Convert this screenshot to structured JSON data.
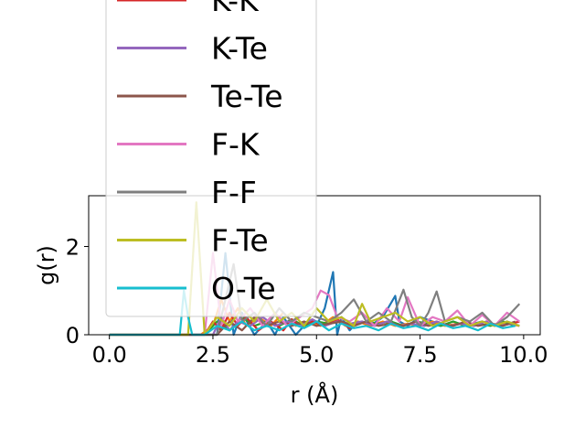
{
  "chart_data": {
    "type": "line",
    "title": "",
    "xlabel": "r (Å)",
    "ylabel": "g(r)",
    "xlim": [
      -0.5,
      10.4
    ],
    "ylim": [
      0,
      3.15
    ],
    "xticks": [
      0.0,
      2.5,
      5.0,
      7.5,
      10.0
    ],
    "xtick_labels": [
      "0.0",
      "2.5",
      "5.0",
      "7.5",
      "10.0"
    ],
    "yticks": [
      0,
      2
    ],
    "ytick_labels": [
      "0",
      "2"
    ],
    "grid": false,
    "legend_position": "upper-left, overflowing above the plot",
    "legend": [
      "K-K",
      "K-Te",
      "Te-Te",
      "F-K",
      "F-F",
      "F-Te",
      "O-Te"
    ],
    "series": [
      {
        "name": "",
        "color": "#1f77b4",
        "x": [
          0.0,
          1.8,
          2.0,
          2.4,
          2.6,
          2.8,
          3.0,
          3.2,
          3.5,
          3.8,
          4.0,
          4.2,
          4.5,
          4.8,
          5.0,
          5.2,
          5.4,
          5.5,
          5.6,
          5.8,
          6.0,
          6.3,
          6.6,
          6.9,
          7.0,
          7.2,
          7.5,
          7.8,
          8.0,
          8.3,
          8.6,
          9.0,
          9.3,
          9.6,
          9.9
        ],
        "y": [
          0,
          0,
          0,
          0,
          0,
          1.85,
          0,
          0.5,
          0,
          0.3,
          0,
          0.4,
          0,
          0.3,
          0.2,
          0.6,
          1.42,
          0,
          0.4,
          0.1,
          0.3,
          0.2,
          0.4,
          0.88,
          0.3,
          0.2,
          0.4,
          0.3,
          0.2,
          0.3,
          0.2,
          0.3,
          0.2,
          0.3,
          0.2
        ]
      },
      {
        "name": "",
        "color": "#ff7f0e",
        "x": [
          0.0,
          1.9,
          2.2,
          2.5,
          2.7,
          2.9,
          3.1,
          3.3,
          3.6,
          3.9,
          4.2,
          4.5,
          4.8,
          5.1,
          5.4,
          5.7,
          6.0,
          6.3,
          6.6,
          6.9,
          7.2,
          7.5,
          7.8,
          8.1,
          8.4,
          8.7,
          9.0,
          9.3,
          9.6,
          9.9
        ],
        "y": [
          0,
          0,
          0,
          0.2,
          0.8,
          0.3,
          0.6,
          0.2,
          0.4,
          0.2,
          0.5,
          0.2,
          0.3,
          0.2,
          0.4,
          0.2,
          0.3,
          0.2,
          0.3,
          0.2,
          0.25,
          0.2,
          0.3,
          0.2,
          0.25,
          0.2,
          0.3,
          0.2,
          0.25,
          0.2
        ]
      },
      {
        "name": "",
        "color": "#2ca02c",
        "x": [
          0.0,
          2.0,
          2.3,
          2.6,
          2.9,
          3.2,
          3.5,
          3.8,
          4.1,
          4.4,
          4.7,
          5.0,
          5.3,
          5.6,
          5.9,
          6.2,
          6.5,
          6.8,
          7.1,
          7.4,
          7.7,
          8.0,
          8.3,
          8.6,
          8.9,
          9.2,
          9.5,
          9.8
        ],
        "y": [
          0,
          0,
          0,
          0.3,
          0.1,
          0.4,
          0.2,
          0.3,
          0.2,
          0.35,
          0.2,
          0.3,
          0.25,
          0.3,
          0.2,
          0.3,
          0.25,
          0.3,
          0.2,
          0.3,
          0.25,
          0.2,
          0.3,
          0.2,
          0.25,
          0.2,
          0.3,
          0.2
        ]
      },
      {
        "name": "K-K",
        "color": "#d62728",
        "x": [
          0.0,
          2.3,
          2.5,
          2.7,
          2.9,
          3.1,
          3.3,
          3.6,
          3.9,
          4.2,
          4.4,
          4.6,
          4.9,
          5.2,
          5.5,
          5.8,
          6.1,
          6.4,
          6.7,
          7.0,
          7.3,
          7.6,
          7.9,
          8.2,
          8.5,
          8.8,
          9.1,
          9.4,
          9.7,
          9.9
        ],
        "y": [
          0,
          0,
          0.3,
          0.1,
          0.5,
          0.2,
          0.4,
          0.1,
          0.3,
          0.1,
          0.35,
          0.2,
          0.3,
          0.2,
          0.35,
          0.15,
          0.3,
          0.2,
          0.3,
          0.2,
          0.25,
          0.2,
          0.3,
          0.2,
          0.25,
          0.2,
          0.3,
          0.2,
          0.25,
          0.3
        ]
      },
      {
        "name": "K-Te",
        "color": "#9467bd",
        "x": [
          0.0,
          2.5,
          2.7,
          2.9,
          3.1,
          3.4,
          3.7,
          4.0,
          4.3,
          4.6,
          4.9,
          5.2,
          5.5,
          5.8,
          6.1,
          6.4,
          6.7,
          7.0,
          7.3,
          7.6,
          7.9,
          8.2,
          8.5,
          8.8,
          9.1,
          9.4,
          9.7,
          9.9
        ],
        "y": [
          0,
          0,
          0.4,
          0.1,
          0.3,
          0.2,
          0.4,
          0.2,
          0.3,
          0.2,
          0.35,
          0.2,
          0.3,
          0.25,
          0.3,
          0.2,
          0.3,
          0.2,
          0.25,
          0.2,
          0.3,
          0.2,
          0.25,
          0.2,
          0.3,
          0.2,
          0.25,
          0.2
        ]
      },
      {
        "name": "Te-Te",
        "color": "#8c564b",
        "x": [
          0.0,
          2.6,
          2.9,
          3.2,
          3.5,
          3.8,
          4.1,
          4.4,
          4.7,
          5.0,
          5.3,
          5.6,
          5.9,
          6.2,
          6.5,
          6.8,
          7.1,
          7.4,
          7.7,
          8.0,
          8.3,
          8.6,
          8.9,
          9.2,
          9.5,
          9.8
        ],
        "y": [
          0,
          0,
          0.3,
          0.1,
          0.4,
          0.2,
          0.3,
          0.2,
          0.3,
          0.2,
          0.25,
          0.3,
          0.2,
          0.3,
          0.2,
          0.25,
          0.2,
          0.3,
          0.2,
          0.25,
          0.2,
          0.3,
          0.2,
          0.25,
          0.2,
          0.3
        ]
      },
      {
        "name": "F-K",
        "color": "#e377c2",
        "x": [
          0.0,
          2.3,
          2.5,
          2.7,
          2.9,
          3.1,
          3.4,
          3.7,
          4.0,
          4.3,
          4.6,
          4.9,
          5.1,
          5.3,
          5.5,
          5.8,
          6.1,
          6.4,
          6.7,
          7.0,
          7.2,
          7.5,
          7.8,
          8.1,
          8.4,
          8.7,
          9.0,
          9.3,
          9.6,
          9.9
        ],
        "y": [
          0,
          0,
          1.85,
          0.2,
          0.8,
          0.3,
          0.6,
          0.2,
          0.5,
          0.2,
          0.4,
          0.6,
          1.0,
          0.9,
          0.4,
          0.3,
          0.5,
          0.2,
          0.6,
          0.3,
          0.85,
          0.2,
          0.4,
          0.3,
          0.55,
          0.2,
          0.45,
          0.2,
          0.5,
          0.3
        ]
      },
      {
        "name": "F-F",
        "color": "#7f7f7f",
        "x": [
          0.0,
          2.6,
          2.8,
          3.0,
          3.2,
          3.5,
          3.8,
          4.1,
          4.4,
          4.7,
          5.0,
          5.3,
          5.6,
          5.9,
          6.2,
          6.5,
          6.8,
          7.1,
          7.3,
          7.5,
          7.7,
          7.9,
          8.1,
          8.4,
          8.7,
          9.0,
          9.3,
          9.6,
          9.9
        ],
        "y": [
          0,
          0,
          0.8,
          1.6,
          0.3,
          0.5,
          0.2,
          0.6,
          0.3,
          0.5,
          0.4,
          0.3,
          0.5,
          0.8,
          0.3,
          0.5,
          0.3,
          1.02,
          0.4,
          0.2,
          0.5,
          0.98,
          0.3,
          0.4,
          0.3,
          0.5,
          0.2,
          0.4,
          0.7
        ]
      },
      {
        "name": "F-Te",
        "color": "#bcbd22",
        "x": [
          0.0,
          1.9,
          2.1,
          2.3,
          2.6,
          2.9,
          3.2,
          3.5,
          3.8,
          4.1,
          4.4,
          4.7,
          5.0,
          5.3,
          5.6,
          5.9,
          6.1,
          6.3,
          6.6,
          6.9,
          7.2,
          7.5,
          7.8,
          8.1,
          8.4,
          8.7,
          9.0,
          9.3,
          9.6,
          9.9
        ],
        "y": [
          0,
          0,
          3.0,
          0,
          0.4,
          0.2,
          0.6,
          0.3,
          0.8,
          0.3,
          0.5,
          0.2,
          0.6,
          0.3,
          0.4,
          0.2,
          0.7,
          0.3,
          0.4,
          0.5,
          0.3,
          0.4,
          0.2,
          0.3,
          0.4,
          0.2,
          0.3,
          0.2,
          0.3,
          0.2
        ]
      },
      {
        "name": "O-Te",
        "color": "#17becf",
        "x": [
          0.0,
          1.7,
          1.8,
          1.9,
          2.0,
          2.3,
          2.6,
          2.9,
          3.2,
          3.5,
          3.8,
          4.1,
          4.4,
          4.7,
          5.0,
          5.3,
          5.6,
          5.9,
          6.2,
          6.5,
          6.8,
          7.1,
          7.4,
          7.7,
          8.0,
          8.3,
          8.6,
          8.9,
          9.2,
          9.5,
          9.8
        ],
        "y": [
          0,
          0,
          1.0,
          0.4,
          0,
          0,
          0.2,
          0.1,
          0.3,
          0.1,
          0.2,
          0.1,
          0.25,
          0.15,
          0.3,
          0.1,
          0.25,
          0.15,
          0.2,
          0.1,
          0.25,
          0.15,
          0.2,
          0.1,
          0.25,
          0.15,
          0.2,
          0.1,
          0.25,
          0.15,
          0.2
        ]
      }
    ]
  }
}
